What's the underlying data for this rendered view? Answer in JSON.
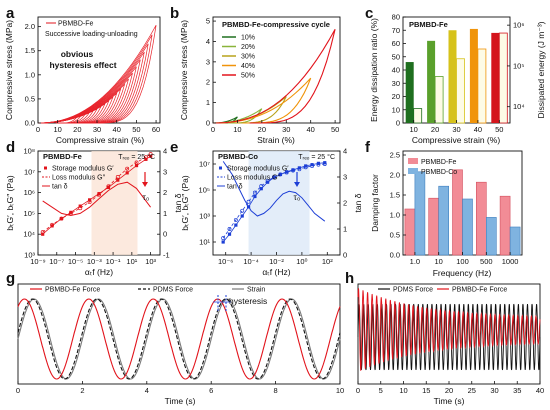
{
  "panels": [
    "a",
    "b",
    "c",
    "d",
    "e",
    "f",
    "g",
    "h"
  ],
  "chart_data": [
    {
      "panel": "a",
      "type": "line",
      "legend": [
        "PBMBD-Fe"
      ],
      "annotations": [
        "Successive loading-unloading",
        "obvious",
        "hysteresis effect"
      ],
      "xlabel": "Compressive strain (%)",
      "ylabel": "Compressive stress (MPa)",
      "xticks": [
        "0",
        "10",
        "20",
        "30",
        "40",
        "50",
        "60"
      ],
      "yticks": [
        "0.0",
        "0.5",
        "1.0",
        "1.5",
        "2.0"
      ],
      "xlim": [
        0,
        62
      ],
      "ylim": [
        0,
        2.2
      ],
      "series": [
        {
          "max_strain": [
            20,
            22,
            24,
            26,
            28,
            30,
            32,
            34,
            36,
            38,
            40,
            42,
            44,
            46,
            48,
            50,
            52,
            54,
            56,
            58,
            60
          ],
          "color": "#e8222a"
        }
      ]
    },
    {
      "panel": "b",
      "type": "line",
      "title": "PBMBD-Fe-compressive cycle",
      "xlabel": "Strain (%)",
      "ylabel": "Compressive stress (MPa)",
      "xticks": [
        "0",
        "10",
        "20",
        "30",
        "40",
        "50"
      ],
      "yticks": [
        "0",
        "1",
        "2",
        "3",
        "4",
        "5"
      ],
      "xlim": [
        0,
        52
      ],
      "ylim": [
        0,
        5.2
      ],
      "series": [
        {
          "name": "10%",
          "max_strain": 10,
          "peak_stress": 0.3,
          "color": "#1f6f1f"
        },
        {
          "name": "20%",
          "max_strain": 20,
          "peak_stress": 0.7,
          "color": "#8ab43a"
        },
        {
          "name": "30%",
          "max_strain": 30,
          "peak_stress": 1.3,
          "color": "#b8a21a"
        },
        {
          "name": "40%",
          "max_strain": 40,
          "peak_stress": 2.2,
          "color": "#f0940a"
        },
        {
          "name": "50%",
          "max_strain": 50,
          "peak_stress": 4.6,
          "color": "#e2141c"
        }
      ]
    },
    {
      "panel": "c",
      "type": "bar",
      "title": "PBMBD-Fe",
      "categories": [
        "10",
        "20",
        "30",
        "40",
        "50"
      ],
      "xlabel": "Compressive strain (%)",
      "ylabel": "Energy dissipation ratio (%)",
      "ylabel_right": "Dissipated energy (J m⁻³)",
      "yticks": [
        "0",
        "10",
        "20",
        "30",
        "40",
        "50",
        "60",
        "70",
        "80"
      ],
      "yticks_right": [
        "10⁴",
        "10⁵",
        "10⁶"
      ],
      "ylim": [
        0,
        80
      ],
      "ylim_right_log10": [
        3.6,
        6.2
      ],
      "series": [
        {
          "name": "Energy dissipation ratio",
          "values": [
            46,
            62,
            70,
            71,
            68
          ],
          "colors": [
            "#1f6f1f",
            "#5aa02c",
            "#d6c21a",
            "#f0940a",
            "#d4141c"
          ]
        },
        {
          "name": "Dissipated energy",
          "values": [
            9000,
            55000,
            150000,
            260000,
            640000
          ]
        }
      ]
    },
    {
      "panel": "d",
      "type": "line",
      "title": "PBMBD-Fe",
      "annotations": [
        "Tᵣₑₒ = 25 °C",
        "τ₀"
      ],
      "xlabel": "αₜf (Hz)",
      "ylabel": "bₜG′, bₜG″ (Pa)",
      "ylabel_right": "tan δ",
      "xlim_log10": [
        -9,
        4
      ],
      "ylim_log10": [
        3,
        8
      ],
      "ylim_right": [
        -1,
        4
      ],
      "xticks": [
        "10⁻⁹",
        "10⁻⁷",
        "10⁻⁵",
        "10⁻³",
        "10⁻¹",
        "10¹",
        "10³"
      ],
      "yticks": [
        "10³",
        "10⁴",
        "10⁵",
        "10⁶",
        "10⁷",
        "10⁸"
      ],
      "yticks_right": [
        "-1",
        "0",
        "1",
        "2",
        "3",
        "4"
      ],
      "series": [
        {
          "name": "Storage modulus G′",
          "color": "#e2141c",
          "x_log10": [
            -8.5,
            -7.5,
            -6.5,
            -5.5,
            -4.5,
            -3.5,
            -2.5,
            -1.5,
            -0.5,
            0.5,
            1.5,
            2.5,
            3.0
          ],
          "y_log10": [
            4.0,
            4.4,
            4.75,
            5.05,
            5.35,
            5.65,
            5.95,
            6.25,
            6.6,
            6.95,
            7.3,
            7.6,
            7.75
          ]
        },
        {
          "name": "Loss modulus G″",
          "color": "#e2141c",
          "x_log10": [
            -8.5,
            -7.5,
            -6.5,
            -5.5,
            -4.5,
            -3.5,
            -2.5,
            -1.5,
            -0.5,
            0.5,
            1.5,
            2.5,
            3.0
          ],
          "y_log10": [
            4.1,
            4.45,
            4.75,
            5.0,
            5.25,
            5.55,
            5.9,
            6.3,
            6.75,
            7.15,
            7.45,
            7.7,
            7.85
          ]
        },
        {
          "name": "tan δ",
          "color": "#e2141c",
          "x_log10": [
            -8.5,
            -7.5,
            -6.5,
            -5.5,
            -4.5,
            -3.5,
            -2.5,
            -1.5,
            -0.5,
            0.5,
            1.5,
            2.5,
            3.0
          ],
          "y": [
            1.6,
            1.3,
            1.0,
            0.9,
            1.0,
            1.3,
            1.7,
            2.1,
            2.4,
            2.5,
            2.2,
            1.6,
            1.3
          ]
        }
      ]
    },
    {
      "panel": "e",
      "type": "line",
      "title": "PBMBD-Co",
      "annotations": [
        "Tᵣₑₒ = 25 °C",
        "τ₀"
      ],
      "xlabel": "αₜf (Hz)",
      "ylabel": "bₜG′, bₜG″ (Pa)",
      "ylabel_right": "tan δ",
      "xlim_log10": [
        -7,
        3
      ],
      "ylim_log10": [
        0,
        8
      ],
      "ylim_right": [
        0,
        4
      ],
      "xticks": [
        "10⁻⁶",
        "10⁻⁴",
        "10⁻²",
        "10⁰",
        "10²"
      ],
      "yticks": [
        "10¹",
        "10³",
        "10⁵",
        "10⁷"
      ],
      "yticks_right": [
        "0",
        "1",
        "2",
        "3",
        "4"
      ],
      "series": [
        {
          "name": "Storage modulus G′",
          "color": "#1d3fd6",
          "x_log10": [
            -6.2,
            -5.7,
            -5.2,
            -4.7,
            -4.2,
            -3.7,
            -3.2,
            -2.7,
            -2.2,
            -1.7,
            -1.2,
            -0.7,
            -0.2,
            0.3,
            0.8,
            1.3,
            1.8
          ],
          "y_log10": [
            1.0,
            1.6,
            2.3,
            3.0,
            3.7,
            4.5,
            5.1,
            5.6,
            5.95,
            6.2,
            6.4,
            6.55,
            6.7,
            6.85,
            6.95,
            7.05,
            7.1
          ]
        },
        {
          "name": "Loss modulus G″",
          "color": "#1d3fd6",
          "x_log10": [
            -6.2,
            -5.7,
            -5.2,
            -4.7,
            -4.2,
            -3.7,
            -3.2,
            -2.7,
            -2.2,
            -1.7,
            -1.2,
            -0.7,
            -0.2,
            0.3,
            0.8,
            1.3,
            1.8
          ],
          "y_log10": [
            1.3,
            2.0,
            2.7,
            3.4,
            4.1,
            4.8,
            5.3,
            5.7,
            6.0,
            6.2,
            6.35,
            6.5,
            6.6,
            6.75,
            6.85,
            6.95,
            7.0
          ]
        },
        {
          "name": "tan δ",
          "color": "#1d3fd6",
          "x_log10": [
            -6.2,
            -5.5,
            -5.0,
            -4.5,
            -4.0,
            -3.5,
            -3.0,
            -2.5,
            -2.0,
            -1.5,
            -1.0,
            -0.5,
            0.0,
            0.5,
            1.0,
            1.8
          ],
          "y": [
            3.6,
            3.1,
            2.6,
            2.1,
            1.7,
            1.5,
            1.6,
            1.8,
            2.1,
            2.35,
            2.45,
            2.4,
            2.2,
            1.9,
            1.6,
            1.3
          ]
        }
      ]
    },
    {
      "panel": "f",
      "type": "bar",
      "legend": [
        "PBMBD-Fe",
        "PBMBD-Co"
      ],
      "categories": [
        "1.0",
        "10",
        "100",
        "500",
        "1000"
      ],
      "xlabel": "Frequency (Hz)",
      "ylabel": "Damping factor",
      "yticks": [
        "0.0",
        "0.5",
        "1.0",
        "1.5",
        "2.0",
        "2.5"
      ],
      "ylim": [
        0,
        2.6
      ],
      "series": [
        {
          "name": "PBMBD-Fe",
          "values": [
            1.15,
            1.42,
            2.13,
            1.82,
            1.47
          ],
          "color": "#f28c96"
        },
        {
          "name": "PBMBD-Co",
          "values": [
            2.08,
            1.72,
            1.4,
            0.94,
            0.7
          ],
          "color": "#7fb3e0"
        }
      ]
    },
    {
      "panel": "g",
      "type": "line",
      "legend": [
        "PBMBD-Fe Force",
        "PDMS Force",
        "Strain"
      ],
      "annotations": [
        "hysteresis"
      ],
      "xlabel": "Time (s)",
      "xticks": [
        "0",
        "2",
        "4",
        "6",
        "8",
        "10"
      ],
      "xlim": [
        0,
        10
      ],
      "series": [
        {
          "name": "PBMBD-Fe Force",
          "period_s": 2.0,
          "phase_lead_s": 0.3,
          "color": "#e2141c"
        },
        {
          "name": "PDMS Force",
          "period_s": 2.0,
          "phase_lead_s": 0.05,
          "color": "#111111"
        },
        {
          "name": "Strain",
          "period_s": 2.0,
          "phase_lead_s": 0.0,
          "color": "#7a7a7a"
        }
      ]
    },
    {
      "panel": "h",
      "type": "line",
      "legend": [
        "PDMS Force",
        "PBMBD-Fe Force"
      ],
      "xlabel": "Time (s)",
      "xticks": [
        "0",
        "5",
        "10",
        "15",
        "20",
        "25",
        "30",
        "35",
        "40"
      ],
      "xlim": [
        0,
        40
      ],
      "series": [
        {
          "name": "PDMS Force",
          "frequency_hz": 0.5,
          "color": "#111111"
        },
        {
          "name": "PBMBD-Fe Force",
          "frequency_hz": 0.5,
          "color": "#e2141c"
        }
      ]
    }
  ]
}
